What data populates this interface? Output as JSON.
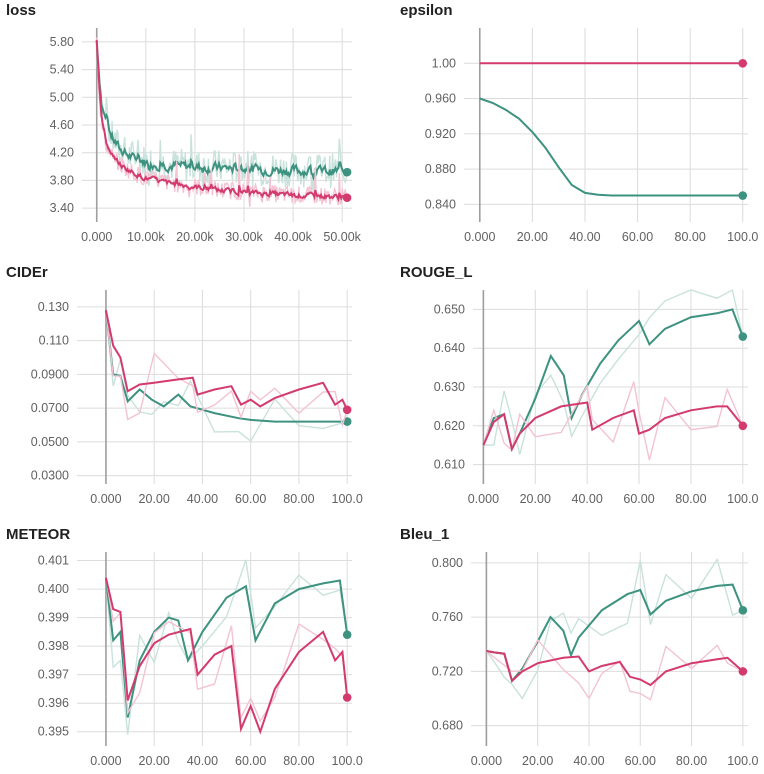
{
  "colors": {
    "teal": "#3d9280",
    "pink": "#d33b6e",
    "teal_light": "#c9e2dc",
    "pink_light": "#f3c3d2"
  },
  "chart_data": [
    {
      "type": "line",
      "title": "loss",
      "xlim": [
        -3000,
        52000
      ],
      "ylim": [
        3.2,
        6.0
      ],
      "xticks": [
        "0.000",
        "10.00k",
        "20.00k",
        "30.00k",
        "40.00k",
        "50.00k"
      ],
      "xtick_values": [
        0,
        10000,
        20000,
        30000,
        40000,
        50000
      ],
      "yticks": [
        "3.40",
        "3.80",
        "4.20",
        "4.60",
        "5.00",
        "5.40",
        "5.80"
      ],
      "ytick_values": [
        3.4,
        3.8,
        4.2,
        4.6,
        5.0,
        5.4,
        5.8
      ],
      "series": [
        {
          "color": "teal",
          "noisy": true,
          "x": [
            0,
            400,
            1000,
            2000,
            3000,
            5000,
            7500,
            10000,
            15000,
            20000,
            25000,
            30000,
            35000,
            40000,
            45000,
            50000,
            51000
          ],
          "y": [
            5.8,
            5.3,
            4.8,
            4.6,
            4.4,
            4.2,
            4.1,
            4.05,
            4.0,
            3.98,
            3.97,
            3.95,
            3.94,
            3.93,
            3.92,
            3.92,
            3.92
          ]
        },
        {
          "color": "pink",
          "noisy": true,
          "x": [
            0,
            400,
            1000,
            2000,
            3000,
            5000,
            7500,
            10000,
            15000,
            20000,
            25000,
            30000,
            35000,
            40000,
            45000,
            50000,
            51000
          ],
          "y": [
            5.8,
            5.2,
            4.6,
            4.3,
            4.15,
            4.0,
            3.9,
            3.82,
            3.75,
            3.7,
            3.65,
            3.62,
            3.6,
            3.58,
            3.57,
            3.55,
            3.55
          ]
        }
      ]
    },
    {
      "type": "line",
      "title": "epsilon",
      "xlim": [
        -6,
        102
      ],
      "ylim": [
        0.82,
        1.04
      ],
      "xticks": [
        "0.000",
        "20.00",
        "40.00",
        "60.00",
        "80.00",
        "100.0"
      ],
      "xtick_values": [
        0,
        20,
        40,
        60,
        80,
        100
      ],
      "yticks": [
        "0.840",
        "0.880",
        "0.920",
        "0.960",
        "1.00"
      ],
      "ytick_values": [
        0.84,
        0.88,
        0.92,
        0.96,
        1.0
      ],
      "series": [
        {
          "color": "pink",
          "x": [
            0,
            100
          ],
          "y": [
            1.0,
            1.0
          ]
        },
        {
          "color": "teal",
          "x": [
            0,
            5,
            10,
            15,
            20,
            25,
            30,
            35,
            40,
            45,
            50,
            60,
            70,
            80,
            90,
            100
          ],
          "y": [
            0.96,
            0.955,
            0.947,
            0.937,
            0.922,
            0.904,
            0.882,
            0.862,
            0.853,
            0.851,
            0.85,
            0.85,
            0.85,
            0.85,
            0.85,
            0.85
          ]
        }
      ]
    },
    {
      "type": "line",
      "title": "CIDEr",
      "xlim": [
        -12,
        102
      ],
      "ylim": [
        0.025,
        0.14
      ],
      "xticks": [
        "0.000",
        "20.00",
        "40.00",
        "60.00",
        "80.00",
        "100.0"
      ],
      "xtick_values": [
        0,
        20,
        40,
        60,
        80,
        100
      ],
      "yticks": [
        "0.0300",
        "0.0500",
        "0.0700",
        "0.0900",
        "0.110",
        "0.130"
      ],
      "ytick_values": [
        0.03,
        0.05,
        0.07,
        0.09,
        0.11,
        0.13
      ],
      "series": [
        {
          "color": "teal",
          "x": [
            0,
            3,
            6,
            9,
            14,
            19,
            24,
            30,
            35,
            45,
            55,
            60,
            70,
            80,
            90,
            100
          ],
          "y": [
            0.128,
            0.09,
            0.089,
            0.074,
            0.081,
            0.075,
            0.071,
            0.078,
            0.071,
            0.067,
            0.064,
            0.063,
            0.062,
            0.062,
            0.062,
            0.062
          ]
        },
        {
          "color": "pink",
          "x": [
            0,
            3,
            6,
            9,
            14,
            20,
            30,
            36,
            38,
            45,
            52,
            56,
            60,
            64,
            70,
            80,
            90,
            95,
            98,
            100
          ],
          "y": [
            0.128,
            0.107,
            0.1,
            0.08,
            0.084,
            0.085,
            0.087,
            0.088,
            0.078,
            0.081,
            0.083,
            0.072,
            0.075,
            0.071,
            0.076,
            0.081,
            0.085,
            0.072,
            0.075,
            0.069
          ]
        }
      ]
    },
    {
      "type": "line",
      "title": "ROUGE_L",
      "xlim": [
        -4,
        102
      ],
      "ylim": [
        0.605,
        0.655
      ],
      "xticks": [
        "0.000",
        "20.00",
        "40.00",
        "60.00",
        "80.00",
        "100.0"
      ],
      "xtick_values": [
        0,
        20,
        40,
        60,
        80,
        100
      ],
      "yticks": [
        "0.610",
        "0.620",
        "0.630",
        "0.640",
        "0.650"
      ],
      "ytick_values": [
        0.61,
        0.62,
        0.63,
        0.64,
        0.65
      ],
      "series": [
        {
          "color": "teal",
          "x": [
            0,
            4,
            8,
            11,
            14,
            20,
            26,
            31,
            34,
            38,
            45,
            52,
            60,
            64,
            70,
            80,
            90,
            96,
            100
          ],
          "y": [
            0.615,
            0.622,
            0.623,
            0.614,
            0.618,
            0.627,
            0.638,
            0.633,
            0.622,
            0.628,
            0.636,
            0.642,
            0.647,
            0.641,
            0.645,
            0.648,
            0.649,
            0.65,
            0.643
          ]
        },
        {
          "color": "pink",
          "x": [
            0,
            4,
            8,
            11,
            14,
            20,
            30,
            40,
            42,
            50,
            58,
            60,
            64,
            70,
            80,
            90,
            94,
            100
          ],
          "y": [
            0.615,
            0.621,
            0.623,
            0.614,
            0.618,
            0.622,
            0.625,
            0.626,
            0.619,
            0.622,
            0.624,
            0.618,
            0.619,
            0.622,
            0.624,
            0.625,
            0.625,
            0.62
          ]
        }
      ]
    },
    {
      "type": "line",
      "title": "METEOR",
      "xlim": [
        -12,
        102
      ],
      "ylim": [
        0.3945,
        0.4013
      ],
      "xticks": [
        "0.000",
        "20.00",
        "40.00",
        "60.00",
        "80.00",
        "100.0"
      ],
      "xtick_values": [
        0,
        20,
        40,
        60,
        80,
        100
      ],
      "yticks": [
        "0.395",
        "0.396",
        "0.397",
        "0.398",
        "0.399",
        "0.400",
        "0.401"
      ],
      "ytick_values": [
        0.395,
        0.396,
        0.397,
        0.398,
        0.399,
        0.4,
        0.401
      ],
      "series": [
        {
          "color": "teal",
          "x": [
            0,
            3,
            6,
            9,
            14,
            20,
            26,
            30,
            34,
            40,
            50,
            58,
            62,
            70,
            80,
            90,
            97,
            100
          ],
          "y": [
            0.4004,
            0.3982,
            0.3985,
            0.3955,
            0.3975,
            0.3985,
            0.399,
            0.3989,
            0.3975,
            0.3985,
            0.3997,
            0.4001,
            0.3982,
            0.3995,
            0.4,
            0.4002,
            0.4003,
            0.3984
          ]
        },
        {
          "color": "pink",
          "x": [
            0,
            3,
            6,
            9,
            14,
            20,
            26,
            35,
            38,
            45,
            52,
            56,
            60,
            64,
            70,
            80,
            90,
            95,
            98,
            100
          ],
          "y": [
            0.4004,
            0.3993,
            0.3992,
            0.3961,
            0.3973,
            0.3981,
            0.3984,
            0.3986,
            0.397,
            0.3977,
            0.398,
            0.3951,
            0.3959,
            0.395,
            0.3965,
            0.3978,
            0.3985,
            0.3975,
            0.3978,
            0.3962
          ]
        }
      ]
    },
    {
      "type": "line",
      "title": "Bleu_1",
      "xlim": [
        -6,
        102
      ],
      "ylim": [
        0.665,
        0.808
      ],
      "xticks": [
        "0.000",
        "20.00",
        "40.00",
        "60.00",
        "80.00",
        "100.0"
      ],
      "xtick_values": [
        0,
        20,
        40,
        60,
        80,
        100
      ],
      "yticks": [
        "0.680",
        "0.720",
        "0.760",
        "0.800"
      ],
      "ytick_values": [
        0.68,
        0.72,
        0.76,
        0.8
      ],
      "series": [
        {
          "color": "teal",
          "x": [
            0,
            3,
            7,
            10,
            14,
            20,
            25,
            30,
            33,
            36,
            45,
            55,
            60,
            64,
            70,
            80,
            90,
            96,
            100
          ],
          "y": [
            0.735,
            0.734,
            0.733,
            0.713,
            0.722,
            0.742,
            0.76,
            0.75,
            0.732,
            0.745,
            0.765,
            0.777,
            0.78,
            0.762,
            0.772,
            0.779,
            0.783,
            0.784,
            0.765
          ]
        },
        {
          "color": "pink",
          "x": [
            0,
            3,
            7,
            10,
            14,
            20,
            30,
            36,
            40,
            45,
            52,
            56,
            60,
            64,
            70,
            80,
            90,
            94,
            100
          ],
          "y": [
            0.735,
            0.734,
            0.733,
            0.713,
            0.72,
            0.726,
            0.73,
            0.731,
            0.72,
            0.724,
            0.727,
            0.716,
            0.714,
            0.71,
            0.72,
            0.726,
            0.729,
            0.73,
            0.72
          ]
        }
      ]
    }
  ]
}
